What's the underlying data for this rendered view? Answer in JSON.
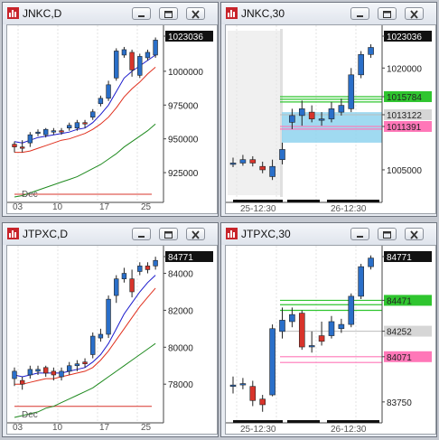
{
  "colors": {
    "bull": "#2a6fc9",
    "bear": "#d8342b",
    "ma_short": "#1a1acc",
    "ma_mid": "#e0301e",
    "ma_long": "#1f8a1f",
    "green_level": "#2fc52f",
    "gray_level": "#d6d6d6",
    "pink_level": "#ff77b8",
    "highlight": "#8fd3ef"
  },
  "icons": {
    "app": "bar-chart-app-icon",
    "minimize": "minimize-icon",
    "maximize": "maximize-icon",
    "close": "close-icon"
  },
  "windows": [
    {
      "title": "JNKC,D",
      "price_labels": [
        "1023036",
        "1000000",
        "975000",
        "950000",
        "925000"
      ],
      "date_labels": [
        "03",
        "10",
        "17",
        "25"
      ],
      "month_label": "Dec"
    },
    {
      "title": "JNKC,30",
      "price_labels": [
        "1023036",
        "1020000",
        "1015784",
        "1013122",
        "1011391",
        "1005000"
      ],
      "date_labels": [
        "25-12:30",
        "26-12:30"
      ]
    },
    {
      "title": "JTPXC,D",
      "price_labels": [
        "84771",
        "84000",
        "82000",
        "80000",
        "78000"
      ],
      "date_labels": [
        "03",
        "10",
        "17",
        "25"
      ],
      "month_label": "Dec"
    },
    {
      "title": "JTPXC,30",
      "price_labels": [
        "84771",
        "84471",
        "84252",
        "84071",
        "83750"
      ],
      "date_labels": [
        "25-12:30",
        "26-12:30"
      ]
    }
  ],
  "chart_data": [
    {
      "type": "candlestick",
      "title": "JNKC,D",
      "ylim": [
        907000,
        1030000
      ],
      "x": [
        "Dec 02",
        "Dec 03",
        "Dec 04",
        "Dec 05",
        "Dec 06",
        "Dec 09",
        "Dec 10",
        "Dec 11",
        "Dec 12",
        "Dec 13",
        "Dec 16",
        "Dec 17",
        "Dec 18",
        "Dec 19",
        "Dec 20",
        "Dec 23",
        "Dec 24",
        "Dec 25",
        "Dec 26"
      ],
      "open": [
        946000,
        944000,
        947000,
        955000,
        953000,
        955000,
        956000,
        958000,
        958000,
        962000,
        966000,
        976000,
        980000,
        995000,
        1012000,
        1014000,
        997000,
        1010000,
        1012000
      ],
      "close": [
        944000,
        943000,
        953000,
        955000,
        957000,
        956000,
        955000,
        960000,
        962000,
        961000,
        970000,
        980000,
        990000,
        1015000,
        1016000,
        1001000,
        1011000,
        1014000,
        1023036
      ],
      "high": [
        948000,
        949000,
        955000,
        957000,
        958000,
        958000,
        958000,
        962000,
        964000,
        964000,
        972000,
        982000,
        993000,
        1017000,
        1018000,
        1016000,
        1013000,
        1016000,
        1025000
      ],
      "low": [
        940000,
        940000,
        944000,
        952000,
        951000,
        953000,
        953000,
        956000,
        956000,
        958000,
        964000,
        974000,
        978000,
        993000,
        1010000,
        996000,
        995000,
        1008000,
        1010000
      ],
      "ma_short": [
        948000,
        947000,
        949000,
        951000,
        952000,
        953000,
        954000,
        955000,
        957000,
        958000,
        962000,
        968000,
        975000,
        985000,
        995000,
        1000000,
        1004000,
        1008000,
        1012000
      ],
      "ma_mid": [
        940000,
        940000,
        941000,
        943000,
        945000,
        947000,
        949000,
        950000,
        952000,
        954000,
        957000,
        961000,
        966000,
        973000,
        981000,
        987000,
        992000,
        998000,
        1003000
      ],
      "ma_long": [
        907000,
        908000,
        910000,
        912000,
        914000,
        916000,
        918000,
        920000,
        922000,
        925000,
        928000,
        931000,
        935000,
        939000,
        944000,
        948000,
        952000,
        956000,
        961000
      ],
      "level_line": 909000
    },
    {
      "type": "candlestick",
      "title": "JNKC,30",
      "ylim": [
        1001000,
        1025500
      ],
      "x": [
        "25-09:00",
        "25-09:30",
        "25-10:00",
        "25-10:30",
        "25-11:00",
        "25-11:30",
        "25-12:00",
        "25-12:30",
        "25-13:00",
        "25-13:30",
        "25-14:00",
        "26-12:30",
        "26-13:00",
        "26-13:30",
        "26-14:00"
      ],
      "open": [
        1006000,
        1006000,
        1006500,
        1005500,
        1004000,
        1006500,
        1012000,
        1013000,
        1013500,
        1012500,
        1012500,
        1013500,
        1014000,
        1019000,
        1022000
      ],
      "close": [
        1006000,
        1006500,
        1006000,
        1005000,
        1005500,
        1008000,
        1013000,
        1014000,
        1012500,
        1012500,
        1014000,
        1014500,
        1019000,
        1022000,
        1023036
      ],
      "high": [
        1006800,
        1007200,
        1007000,
        1006200,
        1006500,
        1009000,
        1014000,
        1015200,
        1014500,
        1013500,
        1015000,
        1015500,
        1020000,
        1022500,
        1023500
      ],
      "low": [
        1005400,
        1005600,
        1005500,
        1004500,
        1003500,
        1005800,
        1011000,
        1011500,
        1012000,
        1011500,
        1012000,
        1013000,
        1013500,
        1018500,
        1021500
      ],
      "green_levels": [
        1015784,
        1015400,
        1015000
      ],
      "gray_level": 1013122,
      "pink_levels": [
        1011391,
        1011000
      ],
      "highlight_range": [
        1009000,
        1013500
      ]
    },
    {
      "type": "candlestick",
      "title": "JTPXC,D",
      "ylim": [
        76200,
        85200
      ],
      "x": [
        "Dec 02",
        "Dec 03",
        "Dec 04",
        "Dec 05",
        "Dec 06",
        "Dec 09",
        "Dec 10",
        "Dec 11",
        "Dec 12",
        "Dec 13",
        "Dec 16",
        "Dec 17",
        "Dec 18",
        "Dec 19",
        "Dec 20",
        "Dec 23",
        "Dec 24",
        "Dec 25",
        "Dec 26"
      ],
      "open": [
        78300,
        78200,
        78500,
        78700,
        78900,
        78700,
        78400,
        78700,
        79000,
        79200,
        79600,
        80500,
        80700,
        82800,
        83700,
        83700,
        84100,
        84400,
        84400
      ],
      "close": [
        78700,
        78000,
        78800,
        78800,
        78600,
        78500,
        78700,
        79000,
        79100,
        79100,
        80600,
        80700,
        82600,
        83700,
        84000,
        83000,
        84400,
        84200,
        84700
      ],
      "high": [
        78900,
        78400,
        79000,
        79000,
        79000,
        78900,
        78900,
        79200,
        79300,
        79400,
        80800,
        81000,
        82800,
        83900,
        84300,
        84200,
        84600,
        84600,
        84900
      ],
      "low": [
        77900,
        77700,
        78300,
        78500,
        78400,
        78200,
        78200,
        78500,
        78700,
        78900,
        79400,
        80300,
        80500,
        82400,
        83500,
        82700,
        83900,
        84000,
        84200
      ],
      "ma_short": [
        78500,
        78400,
        78500,
        78600,
        78600,
        78600,
        78600,
        78700,
        78800,
        78900,
        79200,
        79600,
        80200,
        81000,
        81800,
        82400,
        83000,
        83500,
        83900
      ],
      "ma_mid": [
        78000,
        78000,
        78100,
        78200,
        78300,
        78300,
        78400,
        78500,
        78600,
        78700,
        78900,
        79300,
        79800,
        80400,
        81000,
        81600,
        82200,
        82700,
        83200
      ],
      "ma_long": [
        76200,
        76300,
        76400,
        76500,
        76700,
        76800,
        77000,
        77200,
        77400,
        77600,
        77800,
        78100,
        78400,
        78700,
        79000,
        79300,
        79600,
        79900,
        80200
      ],
      "level_line": 76800
    },
    {
      "type": "candlestick",
      "title": "JTPXC,30",
      "ylim": [
        83640,
        84820
      ],
      "x": [
        "25-09:00",
        "25-09:30",
        "25-10:00",
        "25-10:30",
        "25-11:00",
        "25-11:30",
        "25-12:00",
        "25-12:30",
        "25-13:00",
        "25-13:30",
        "25-14:00",
        "26-12:30",
        "26-13:00",
        "26-13:30",
        "26-14:00"
      ],
      "open": [
        83860,
        83880,
        83860,
        83770,
        83800,
        84250,
        84320,
        84380,
        84150,
        84220,
        84220,
        84270,
        84300,
        84500,
        84710
      ],
      "close": [
        83870,
        83880,
        83760,
        83730,
        84270,
        84330,
        84370,
        84140,
        84150,
        84180,
        84320,
        84300,
        84500,
        84710,
        84771
      ],
      "high": [
        83930,
        83920,
        83900,
        83800,
        84300,
        84420,
        84420,
        84400,
        84250,
        84320,
        84360,
        84340,
        84520,
        84730,
        84790
      ],
      "low": [
        83810,
        83840,
        83720,
        83680,
        83790,
        84200,
        84280,
        84120,
        84100,
        84150,
        84200,
        84240,
        84280,
        84480,
        84690
      ],
      "green_levels": [
        84471,
        84440,
        84400
      ],
      "gray_level": 84252,
      "pink_levels": [
        84071,
        84030
      ]
    }
  ]
}
